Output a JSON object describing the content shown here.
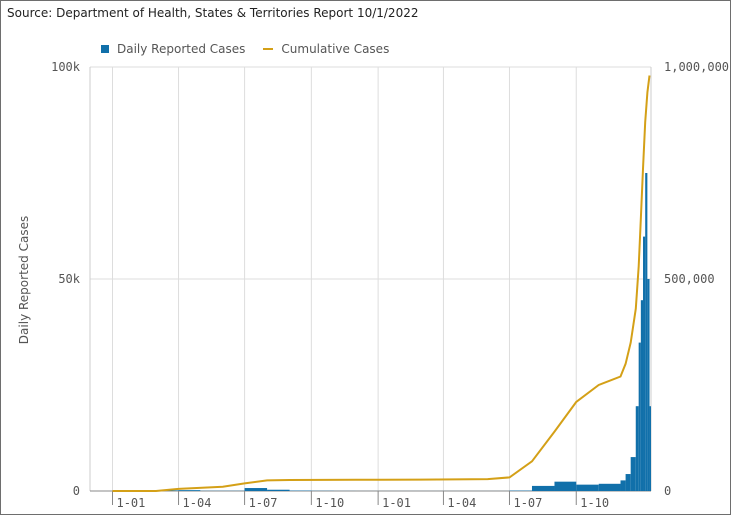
{
  "source_text": "Source: Department of Health, States & Territories Report 10/1/2022",
  "chart_data": {
    "type": "bar+line",
    "title": "",
    "ylabel": "Daily Reported Cases",
    "y2label": "",
    "ylim": [
      0,
      100000
    ],
    "y2lim": [
      0,
      1000000
    ],
    "yticks": [
      {
        "value": 0,
        "label": "0"
      },
      {
        "value": 50000,
        "label": "50k"
      },
      {
        "value": 100000,
        "label": "100k"
      }
    ],
    "y2ticks": [
      {
        "value": 0,
        "label": "0"
      },
      {
        "value": 500000,
        "label": "500,000"
      },
      {
        "value": 1000000,
        "label": "1,000,000"
      }
    ],
    "xticks": [
      "1-01",
      "1-04",
      "1-07",
      "1-10",
      "1-01",
      "1-04",
      "1-07",
      "1-10"
    ],
    "grid": true,
    "legend_position": "top",
    "colors": {
      "daily": "#1170aa",
      "cumulative": "#d4a017",
      "grid": "#dddddd"
    },
    "series": [
      {
        "name": "Daily Reported Cases",
        "kind": "bar",
        "axis": "left",
        "x": [
          "2020-01",
          "2020-02",
          "2020-03",
          "2020-04",
          "2020-05",
          "2020-06",
          "2020-07",
          "2020-08",
          "2020-09",
          "2020-10",
          "2020-11",
          "2020-12",
          "2021-01",
          "2021-02",
          "2021-03",
          "2021-04",
          "2021-05",
          "2021-06",
          "2021-07",
          "2021-08",
          "2021-09",
          "2021-10",
          "2021-11",
          "2021-12-01",
          "2021-12-08",
          "2021-12-15",
          "2021-12-22",
          "2021-12-26",
          "2021-12-29",
          "2022-01-01",
          "2022-01-04",
          "2022-01-07",
          "2022-01-10"
        ],
        "values": [
          0,
          0,
          150,
          200,
          50,
          50,
          700,
          300,
          100,
          50,
          20,
          10,
          10,
          10,
          10,
          10,
          10,
          10,
          100,
          1200,
          2200,
          1500,
          1700,
          2500,
          4000,
          8000,
          20000,
          35000,
          45000,
          60000,
          75000,
          50000,
          20000
        ]
      },
      {
        "name": "Cumulative Cases",
        "kind": "line",
        "axis": "right",
        "x": [
          "2020-01",
          "2020-03",
          "2020-04",
          "2020-06",
          "2020-07",
          "2020-08",
          "2020-09",
          "2020-12",
          "2021-03",
          "2021-06",
          "2021-07",
          "2021-08",
          "2021-09",
          "2021-10",
          "2021-11",
          "2021-12-01",
          "2021-12-08",
          "2021-12-15",
          "2021-12-22",
          "2021-12-26",
          "2021-12-29",
          "2022-01-01",
          "2022-01-04",
          "2022-01-07",
          "2022-01-10"
        ],
        "values": [
          0,
          0,
          5000,
          10000,
          18000,
          25000,
          26000,
          26500,
          27000,
          28000,
          32000,
          70000,
          140000,
          210000,
          250000,
          270000,
          300000,
          350000,
          430000,
          530000,
          640000,
          760000,
          870000,
          940000,
          980000
        ]
      }
    ]
  }
}
